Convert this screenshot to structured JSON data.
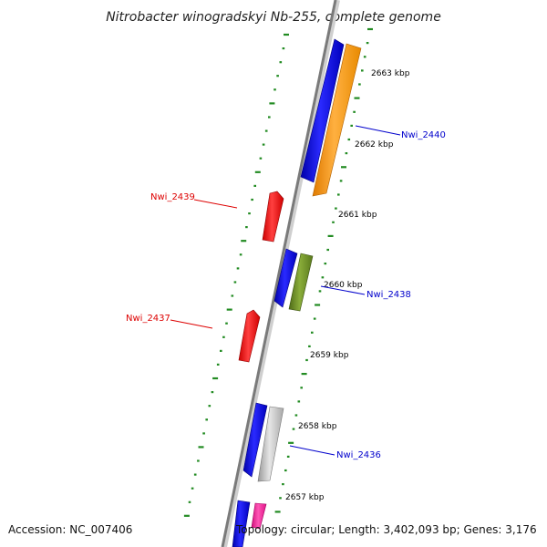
{
  "title": "Nitrobacter winogradskyi Nb-255, complete genome",
  "footer": {
    "accession": "Accession: NC_007406",
    "topology": "Topology: circular; Length: 3,402,093 bp; Genes: 3,176"
  },
  "ticks": [
    {
      "label": "2663 kbp"
    },
    {
      "label": "2662 kbp"
    },
    {
      "label": "2661 kbp"
    },
    {
      "label": "2660 kbp"
    },
    {
      "label": "2659 kbp"
    },
    {
      "label": "2658 kbp"
    },
    {
      "label": "2657 kbp"
    }
  ],
  "genes": [
    {
      "label": "Nwi_2440",
      "color": "#0000cc"
    },
    {
      "label": "Nwi_2439",
      "color": "#dd0000"
    },
    {
      "label": "Nwi_2438",
      "color": "#0000cc"
    },
    {
      "label": "Nwi_2437",
      "color": "#dd0000"
    },
    {
      "label": "Nwi_2436",
      "color": "#0000cc"
    }
  ],
  "colors": {
    "backbone": "#888888",
    "tick": "#228b22",
    "blue_feature": "#0000ee",
    "orange_feature": "#ff9900",
    "olive_feature": "#6b8e23",
    "red_feature": "#ee0000",
    "gray_feature": "#bbbbbb",
    "magenta_feature": "#ff1493"
  }
}
